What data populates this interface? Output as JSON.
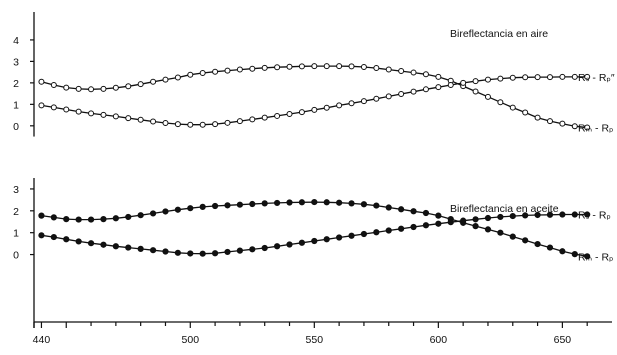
{
  "chart_data": {
    "type": "line",
    "x_axis": {
      "ticks": [
        440,
        500,
        550,
        600,
        650
      ],
      "range": [
        437,
        670
      ]
    },
    "panels": [
      {
        "title": "Bireflectancia en aire",
        "marker": "open",
        "y_axis": {
          "ticks": [
            0,
            1,
            2,
            3,
            4
          ],
          "range": [
            -0.8,
            5.3
          ]
        },
        "x": [
          440,
          445,
          450,
          455,
          460,
          465,
          470,
          475,
          480,
          485,
          490,
          495,
          500,
          505,
          510,
          515,
          520,
          525,
          530,
          535,
          540,
          545,
          550,
          555,
          560,
          565,
          570,
          575,
          580,
          585,
          590,
          595,
          600,
          605,
          610,
          615,
          620,
          625,
          630,
          635,
          640,
          645,
          650,
          655,
          660
        ],
        "series": [
          {
            "name": "Rm - Rp",
            "label": "Rₘ - Rₚ",
            "values": [
              2.05,
              1.9,
              1.78,
              1.72,
              1.7,
              1.72,
              1.77,
              1.84,
              1.94,
              2.05,
              2.15,
              2.25,
              2.38,
              2.46,
              2.52,
              2.57,
              2.62,
              2.66,
              2.7,
              2.73,
              2.75,
              2.77,
              2.78,
              2.78,
              2.78,
              2.77,
              2.74,
              2.69,
              2.62,
              2.55,
              2.48,
              2.4,
              2.28,
              2.1,
              1.85,
              1.6,
              1.35,
              1.1,
              0.85,
              0.62,
              0.38,
              0.22,
              0.1,
              -0.02,
              -0.08
            ]
          },
          {
            "name": "Rs - Rp''",
            "label": "Rₛ - Rₚ″",
            "values": [
              0.95,
              0.86,
              0.76,
              0.66,
              0.58,
              0.51,
              0.44,
              0.36,
              0.28,
              0.2,
              0.13,
              0.08,
              0.05,
              0.05,
              0.08,
              0.14,
              0.22,
              0.3,
              0.38,
              0.46,
              0.55,
              0.64,
              0.74,
              0.84,
              0.95,
              1.05,
              1.15,
              1.26,
              1.37,
              1.48,
              1.59,
              1.7,
              1.8,
              1.9,
              2.0,
              2.08,
              2.15,
              2.2,
              2.24,
              2.26,
              2.27,
              2.27,
              2.28,
              2.28,
              2.28
            ]
          }
        ]
      },
      {
        "title": "Bireflectancia en aceite",
        "marker": "filled",
        "y_axis": {
          "ticks": [
            0,
            1,
            2,
            3
          ],
          "range": [
            -2.9,
            3.5
          ]
        },
        "x": [
          440,
          445,
          450,
          455,
          460,
          465,
          470,
          475,
          480,
          485,
          490,
          495,
          500,
          505,
          510,
          515,
          520,
          525,
          530,
          535,
          540,
          545,
          550,
          555,
          560,
          565,
          570,
          575,
          580,
          585,
          590,
          595,
          600,
          605,
          610,
          615,
          620,
          625,
          630,
          635,
          640,
          645,
          650,
          655,
          660
        ],
        "series": [
          {
            "name": "Rm - Rp",
            "label": "Rₘ - Rₚ",
            "values": [
              1.78,
              1.7,
              1.62,
              1.6,
              1.6,
              1.62,
              1.66,
              1.72,
              1.8,
              1.88,
              1.97,
              2.05,
              2.12,
              2.18,
              2.22,
              2.25,
              2.28,
              2.31,
              2.34,
              2.36,
              2.38,
              2.39,
              2.4,
              2.39,
              2.37,
              2.34,
              2.3,
              2.24,
              2.15,
              2.07,
              1.98,
              1.9,
              1.78,
              1.62,
              1.45,
              1.3,
              1.15,
              1.0,
              0.82,
              0.65,
              0.48,
              0.32,
              0.15,
              0.02,
              -0.08
            ]
          },
          {
            "name": "Rs - Rp",
            "label": "Rₛ - Rₚ",
            "values": [
              0.88,
              0.8,
              0.7,
              0.6,
              0.52,
              0.45,
              0.38,
              0.32,
              0.26,
              0.2,
              0.14,
              0.08,
              0.05,
              0.04,
              0.06,
              0.12,
              0.18,
              0.24,
              0.3,
              0.38,
              0.46,
              0.54,
              0.62,
              0.7,
              0.78,
              0.86,
              0.94,
              1.02,
              1.1,
              1.18,
              1.26,
              1.34,
              1.41,
              1.48,
              1.55,
              1.61,
              1.67,
              1.72,
              1.76,
              1.79,
              1.81,
              1.82,
              1.83,
              1.83,
              1.83
            ]
          }
        ]
      }
    ]
  }
}
